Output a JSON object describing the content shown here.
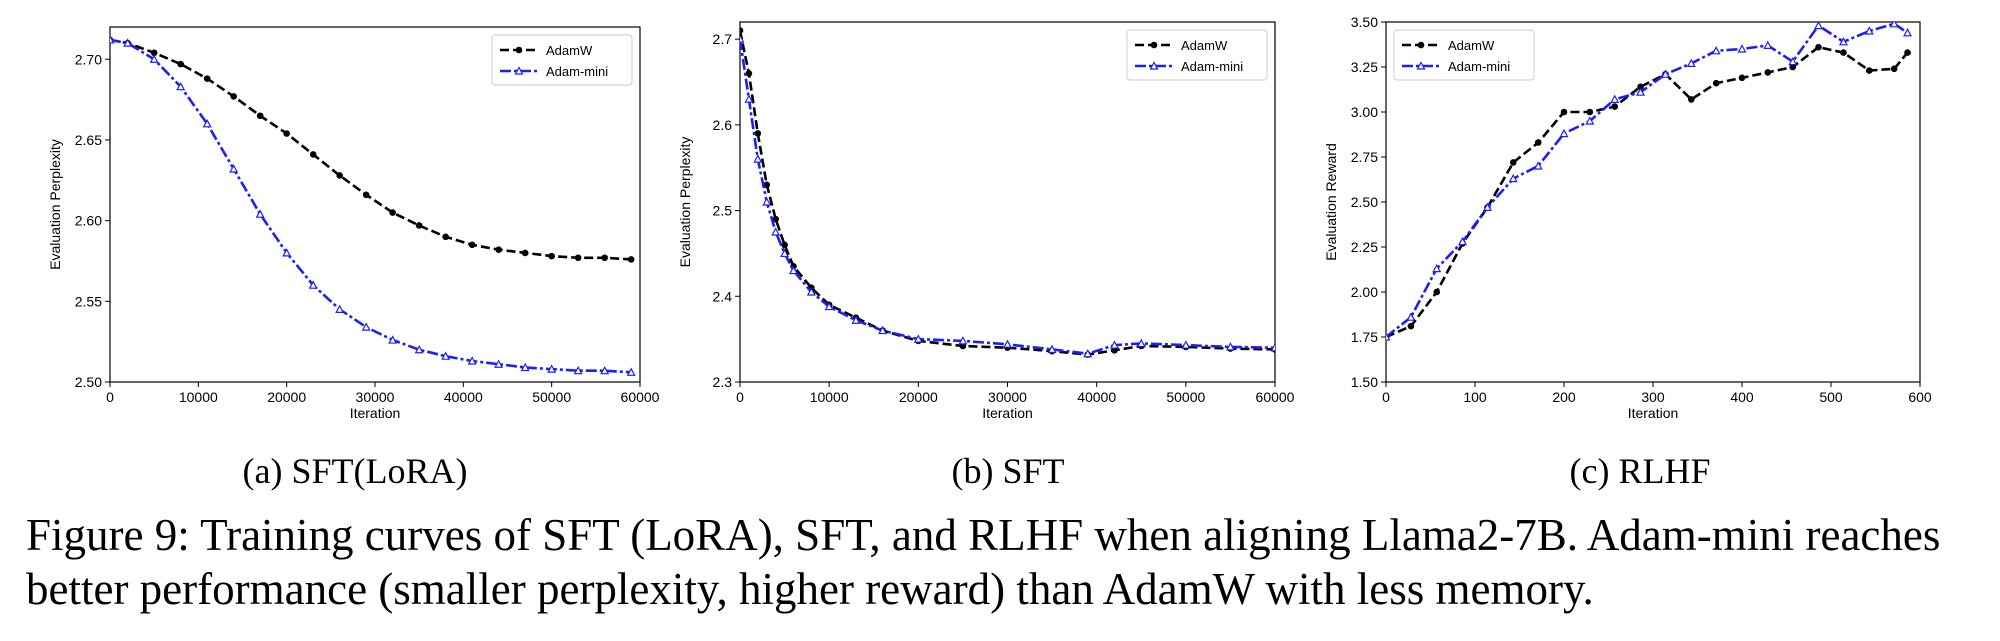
{
  "figure_caption": "Figure 9: Training curves of SFT (LoRA), SFT, and RLHF when aligning Llama2-7B. Adam-mini reaches better performance (smaller perplexity, higher reward) than AdamW with less memory.",
  "colors": {
    "adamw": "#000000",
    "adam_mini": "#1f1ff5"
  },
  "chart_data": [
    {
      "type": "line",
      "subcaption": "(a)  SFT(LoRA)",
      "xlabel": "Iteration",
      "ylabel": "Evaluation Perplexity",
      "xlim": [
        0,
        60000
      ],
      "ylim": [
        2.5,
        2.72
      ],
      "xticks": [
        0,
        10000,
        20000,
        30000,
        40000,
        50000,
        60000
      ],
      "yticks": [
        2.5,
        2.55,
        2.6,
        2.65,
        2.7
      ],
      "ytick_labels": [
        "2.50",
        "2.55",
        "2.60",
        "2.65",
        "2.70"
      ],
      "grid": false,
      "legend_position": "top-right",
      "series": [
        {
          "name": "AdamW",
          "x": [
            0,
            2000,
            5000,
            8000,
            11000,
            14000,
            17000,
            20000,
            23000,
            26000,
            29000,
            32000,
            35000,
            38000,
            41000,
            44000,
            47000,
            50000,
            53000,
            56000,
            59000
          ],
          "y": [
            2.712,
            2.71,
            2.704,
            2.697,
            2.688,
            2.677,
            2.665,
            2.654,
            2.641,
            2.628,
            2.616,
            2.605,
            2.597,
            2.59,
            2.585,
            2.582,
            2.58,
            2.578,
            2.577,
            2.577,
            2.576
          ]
        },
        {
          "name": "Adam-mini",
          "x": [
            0,
            2000,
            5000,
            8000,
            11000,
            14000,
            17000,
            20000,
            23000,
            26000,
            29000,
            32000,
            35000,
            38000,
            41000,
            44000,
            47000,
            50000,
            53000,
            56000,
            59000
          ],
          "y": [
            2.712,
            2.71,
            2.7,
            2.683,
            2.66,
            2.632,
            2.604,
            2.58,
            2.56,
            2.545,
            2.534,
            2.526,
            2.52,
            2.516,
            2.513,
            2.511,
            2.509,
            2.508,
            2.507,
            2.507,
            2.506
          ]
        }
      ]
    },
    {
      "type": "line",
      "subcaption": "(b)  SFT",
      "xlabel": "Iteration",
      "ylabel": "Evaluation Perplexity",
      "xlim": [
        0,
        60000
      ],
      "ylim": [
        2.3,
        2.72
      ],
      "xticks": [
        0,
        10000,
        20000,
        30000,
        40000,
        50000,
        60000
      ],
      "yticks": [
        2.3,
        2.4,
        2.5,
        2.6,
        2.7
      ],
      "ytick_labels": [
        "2.3",
        "2.4",
        "2.5",
        "2.6",
        "2.7"
      ],
      "grid": false,
      "legend_position": "top-right",
      "series": [
        {
          "name": "AdamW",
          "x": [
            0,
            1000,
            2000,
            3000,
            4000,
            5000,
            6000,
            8000,
            10000,
            13000,
            16000,
            20000,
            25000,
            30000,
            35000,
            39000,
            42000,
            45000,
            50000,
            55000,
            60000
          ],
          "y": [
            2.71,
            2.66,
            2.59,
            2.53,
            2.49,
            2.46,
            2.435,
            2.41,
            2.39,
            2.375,
            2.36,
            2.348,
            2.342,
            2.34,
            2.336,
            2.332,
            2.337,
            2.342,
            2.341,
            2.339,
            2.338
          ]
        },
        {
          "name": "Adam-mini",
          "x": [
            0,
            1000,
            2000,
            3000,
            4000,
            5000,
            6000,
            8000,
            10000,
            13000,
            16000,
            20000,
            25000,
            30000,
            35000,
            39000,
            42000,
            45000,
            50000,
            55000,
            60000
          ],
          "y": [
            2.7,
            2.63,
            2.56,
            2.51,
            2.475,
            2.45,
            2.43,
            2.405,
            2.388,
            2.372,
            2.36,
            2.35,
            2.348,
            2.344,
            2.338,
            2.333,
            2.343,
            2.345,
            2.343,
            2.341,
            2.34
          ]
        }
      ]
    },
    {
      "type": "line",
      "subcaption": "(c)  RLHF",
      "xlabel": "Iteration",
      "ylabel": "Evaluation Reward",
      "xlim": [
        0,
        600
      ],
      "ylim": [
        1.5,
        3.5
      ],
      "xticks": [
        0,
        100,
        200,
        300,
        400,
        500,
        600
      ],
      "yticks": [
        1.5,
        1.75,
        2.0,
        2.25,
        2.5,
        2.75,
        3.0,
        3.25,
        3.5
      ],
      "ytick_labels": [
        "1.50",
        "1.75",
        "2.00",
        "2.25",
        "2.50",
        "2.75",
        "3.00",
        "3.25",
        "3.50"
      ],
      "grid": false,
      "legend_position": "top-left",
      "series": [
        {
          "name": "AdamW",
          "x": [
            0,
            28,
            57,
            86,
            114,
            143,
            171,
            200,
            229,
            257,
            286,
            314,
            343,
            371,
            400,
            429,
            457,
            486,
            514,
            543,
            571,
            586
          ],
          "y": [
            1.75,
            1.81,
            2.0,
            2.27,
            2.47,
            2.72,
            2.83,
            3.0,
            3.0,
            3.03,
            3.14,
            3.21,
            3.07,
            3.16,
            3.19,
            3.22,
            3.25,
            3.36,
            3.33,
            3.23,
            3.24,
            3.33
          ]
        },
        {
          "name": "Adam-mini",
          "x": [
            0,
            28,
            57,
            86,
            114,
            143,
            171,
            200,
            229,
            257,
            286,
            314,
            343,
            371,
            400,
            429,
            457,
            486,
            514,
            543,
            571,
            586
          ],
          "y": [
            1.75,
            1.86,
            2.13,
            2.28,
            2.47,
            2.63,
            2.7,
            2.88,
            2.95,
            3.07,
            3.11,
            3.21,
            3.27,
            3.34,
            3.35,
            3.37,
            3.28,
            3.48,
            3.39,
            3.45,
            3.49,
            3.44
          ]
        }
      ]
    }
  ]
}
